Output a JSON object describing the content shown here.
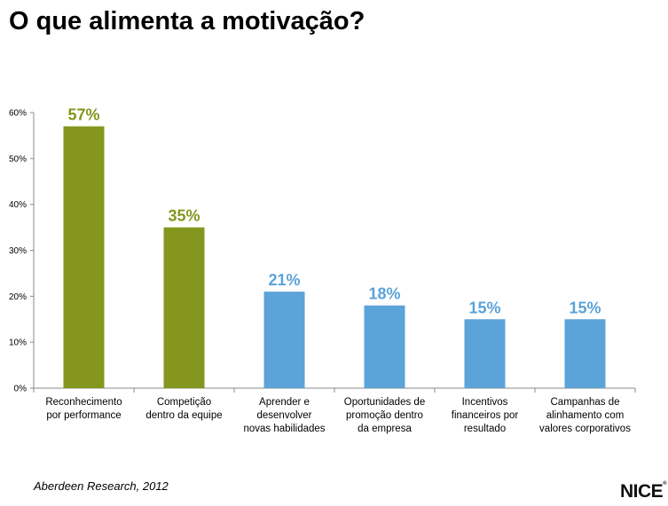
{
  "title": "O que alimenta a motivação?",
  "source": "Aberdeen Research, 2012",
  "logo": {
    "text": "NICE"
  },
  "colors": {
    "green": "#85961e",
    "blue": "#5ba3d9",
    "axis": "#888888"
  },
  "chart_data": {
    "type": "bar",
    "title": "",
    "xlabel": "",
    "ylabel": "",
    "ylim": [
      0,
      60
    ],
    "yticks": [
      0,
      10,
      20,
      30,
      40,
      50,
      60
    ],
    "ytick_labels": [
      "0%",
      "10%",
      "20%",
      "30%",
      "40%",
      "50%",
      "60%"
    ],
    "grid": false,
    "categories": [
      [
        "Reconhecimento",
        "por performance"
      ],
      [
        "Competição",
        "dentro da equipe"
      ],
      [
        "Aprender e",
        "desenvolver",
        "novas habilidades"
      ],
      [
        "Oportunidades de",
        "promoção dentro",
        "da empresa"
      ],
      [
        "Incentivos",
        "financeiros por",
        "resultado"
      ],
      [
        "Campanhas de",
        "alinhamento com",
        "valores corporativos"
      ]
    ],
    "values": [
      57,
      35,
      21,
      18,
      15,
      15
    ],
    "data_labels": [
      "57%",
      "35%",
      "21%",
      "18%",
      "15%",
      "15%"
    ],
    "bar_colors": [
      "#85961e",
      "#85961e",
      "#5ba3d9",
      "#5ba3d9",
      "#5ba3d9",
      "#5ba3d9"
    ]
  }
}
